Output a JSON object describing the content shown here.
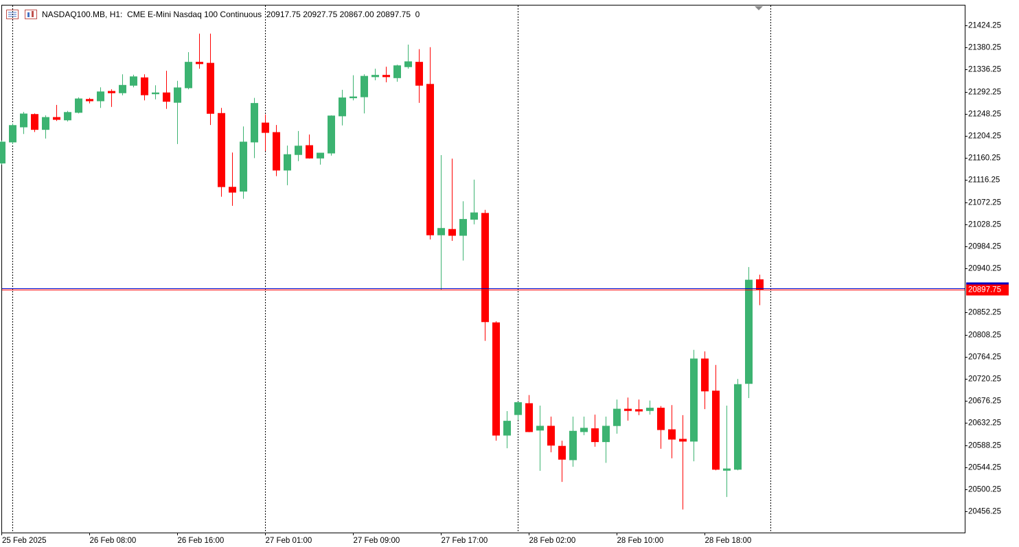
{
  "chart_data": {
    "type": "candlestick",
    "title": "NASDAQ100.MB, H1:  CME E-Mini Nasdaq 100 Continuous  20917.75 20927.75 20867.00 20897.75  0",
    "categories": [
      "25 Feb 2025",
      null,
      null,
      null,
      null,
      null,
      null,
      null,
      "26 Feb 08:00",
      null,
      null,
      null,
      null,
      null,
      null,
      null,
      "26 Feb 16:00",
      null,
      null,
      null,
      null,
      null,
      null,
      null,
      "27 Feb 01:00",
      null,
      null,
      null,
      null,
      null,
      null,
      null,
      "27 Feb 09:00",
      null,
      null,
      null,
      null,
      null,
      null,
      null,
      "27 Feb 17:00",
      null,
      null,
      null,
      null,
      null,
      null,
      null,
      "28 Feb 02:00",
      null,
      null,
      null,
      null,
      null,
      null,
      null,
      "28 Feb 10:00",
      null,
      null,
      null,
      null,
      null,
      null,
      null,
      "28 Feb 18:00",
      null,
      null,
      null,
      null,
      null
    ],
    "open": [
      21150,
      21192,
      21222,
      21247,
      21217,
      21241,
      21236,
      21251,
      21277,
      21274,
      21293,
      21290,
      21305,
      21320,
      21288,
      21290,
      21271,
      21300,
      21351,
      21349,
      21249,
      21102,
      21094,
      21192,
      21230,
      21211,
      21136,
      21167,
      21185,
      21160,
      21170,
      21244,
      21280,
      21282,
      21322,
      21325,
      21320,
      21342,
      21351,
      21307,
      21007,
      21018,
      21006,
      21038,
      21050,
      20832,
      20608,
      20649,
      20671,
      20618,
      20626,
      20586,
      20559,
      20615,
      20621,
      20595,
      20627,
      20660,
      20659,
      20657,
      20662,
      20619,
      20600,
      20596,
      20760,
      20696,
      20538,
      20540,
      20711,
      20917.75
    ],
    "high": [
      21195,
      21229,
      21252,
      21249,
      21245,
      21266,
      21254,
      21281,
      21280,
      21301,
      21297,
      21327,
      21326,
      21327,
      21305,
      21334,
      21314,
      21371,
      21408,
      21408,
      21260,
      21171,
      21223,
      21280,
      21247,
      21226,
      21185,
      21214,
      21207,
      21170,
      21245,
      21296,
      21325,
      21327,
      21338,
      21342,
      21346,
      21386,
      21377,
      21381,
      21166,
      21159,
      21074,
      21117,
      21057,
      20835,
      20656,
      20675,
      20688,
      20667,
      20645,
      20597,
      20645,
      20645,
      20649,
      20645,
      20679,
      20683,
      20679,
      20677,
      20666,
      20668,
      20648,
      20778,
      20775,
      20748,
      20667,
      20720,
      20943,
      20927.75
    ],
    "low": [
      21147,
      21188,
      21208,
      21212,
      21199,
      21234,
      21233,
      21249,
      21269,
      21260,
      21262,
      21285,
      21301,
      21275,
      21277,
      21258,
      21188,
      21297,
      21338,
      21226,
      21083,
      21065,
      21079,
      21160,
      21174,
      21124,
      21106,
      21154,
      21159,
      21147,
      21165,
      21225,
      21275,
      21249,
      21315,
      21311,
      21312,
      21338,
      21270,
      20998,
      20897,
      20995,
      20956,
      21028,
      20796,
      20597,
      20582,
      20638,
      20614,
      20537,
      20574,
      20515,
      20545,
      20608,
      20585,
      20553,
      20611,
      20637,
      20648,
      20649,
      20581,
      20562,
      20460,
      20556,
      20660,
      20538,
      20485,
      20538,
      20682,
      20867
    ],
    "close": [
      21192,
      21225,
      21248,
      21217,
      21241,
      21237,
      21251,
      21278,
      21274,
      21292,
      21290,
      21305,
      21322,
      21286,
      21290,
      21273,
      21300,
      21351,
      21348,
      21249,
      21103,
      21092,
      21192,
      21269,
      21211,
      21136,
      21167,
      21184,
      21160,
      21170,
      21244,
      21280,
      21282,
      21323,
      21325,
      21322,
      21344,
      21352,
      21305,
      21007,
      21020,
      21006,
      21038,
      21051,
      20834,
      20608,
      20636,
      20673,
      20615,
      20626,
      20588,
      20560,
      20616,
      20622,
      20595,
      20626,
      20660,
      20657,
      20656,
      20662,
      20619,
      20600,
      20596,
      20760,
      20696,
      20540,
      20541,
      20709,
      20917,
      20897.75
    ],
    "up_color": "#3cb371",
    "down_color": "#ff0000",
    "last_price": 20897.75,
    "ylim": [
      20414,
      21464
    ],
    "yticks": [
      20456.25,
      20500.25,
      20544.25,
      20588.25,
      20632.25,
      20676.25,
      20720.25,
      20764.25,
      20808.25,
      20852.25,
      20940.25,
      20984.25,
      21028.25,
      21072.25,
      21116.25,
      21160.25,
      21204.25,
      21248.25,
      21292.25,
      21336.25,
      21380.25,
      21424.25
    ]
  }
}
